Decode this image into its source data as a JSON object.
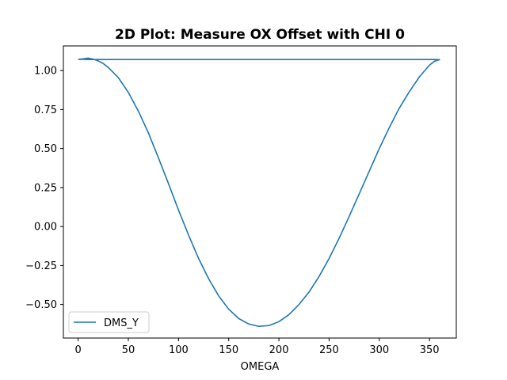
{
  "chart_data": {
    "type": "line",
    "title": "2D Plot: Measure OX Offset with CHI 0",
    "xlabel": "OMEGA",
    "ylabel": "",
    "xlim": [
      -14.7,
      376.7
    ],
    "ylim": [
      -0.715,
      1.158
    ],
    "x_ticks": [
      0,
      50,
      100,
      150,
      200,
      250,
      300,
      350
    ],
    "y_ticks": [
      -0.5,
      -0.25,
      0.0,
      0.25,
      0.5,
      0.75,
      1.0
    ],
    "x_tick_labels": [
      "0",
      "50",
      "100",
      "150",
      "200",
      "250",
      "300",
      "350"
    ],
    "y_tick_labels": [
      "−0.50",
      "−0.25",
      "0.00",
      "0.25",
      "0.50",
      "0.75",
      "1.00"
    ],
    "grid": false,
    "legend_position": "lower-left",
    "series": [
      {
        "name": "DMS_Y",
        "color": "#1f77b4",
        "x": [
          0,
          5,
          10,
          15,
          20,
          25,
          30,
          40,
          50,
          60,
          70,
          80,
          90,
          100,
          110,
          120,
          130,
          140,
          150,
          160,
          170,
          180,
          190,
          200,
          210,
          220,
          230,
          240,
          250,
          260,
          270,
          280,
          290,
          300,
          310,
          320,
          330,
          340,
          350,
          355,
          360,
          355,
          340,
          300,
          250,
          200,
          150,
          100,
          50,
          20,
          10,
          5,
          0
        ],
        "y": [
          1.072,
          1.075,
          1.08,
          1.073,
          1.062,
          1.045,
          1.02,
          0.955,
          0.86,
          0.74,
          0.6,
          0.44,
          0.275,
          0.105,
          -0.055,
          -0.205,
          -0.335,
          -0.445,
          -0.53,
          -0.59,
          -0.625,
          -0.64,
          -0.635,
          -0.61,
          -0.565,
          -0.5,
          -0.42,
          -0.32,
          -0.205,
          -0.075,
          0.065,
          0.21,
          0.355,
          0.5,
          0.635,
          0.76,
          0.865,
          0.96,
          1.035,
          1.06,
          1.07,
          1.071,
          1.071,
          1.071,
          1.071,
          1.071,
          1.071,
          1.071,
          1.071,
          1.071,
          1.071,
          1.072,
          1.072
        ]
      }
    ]
  }
}
